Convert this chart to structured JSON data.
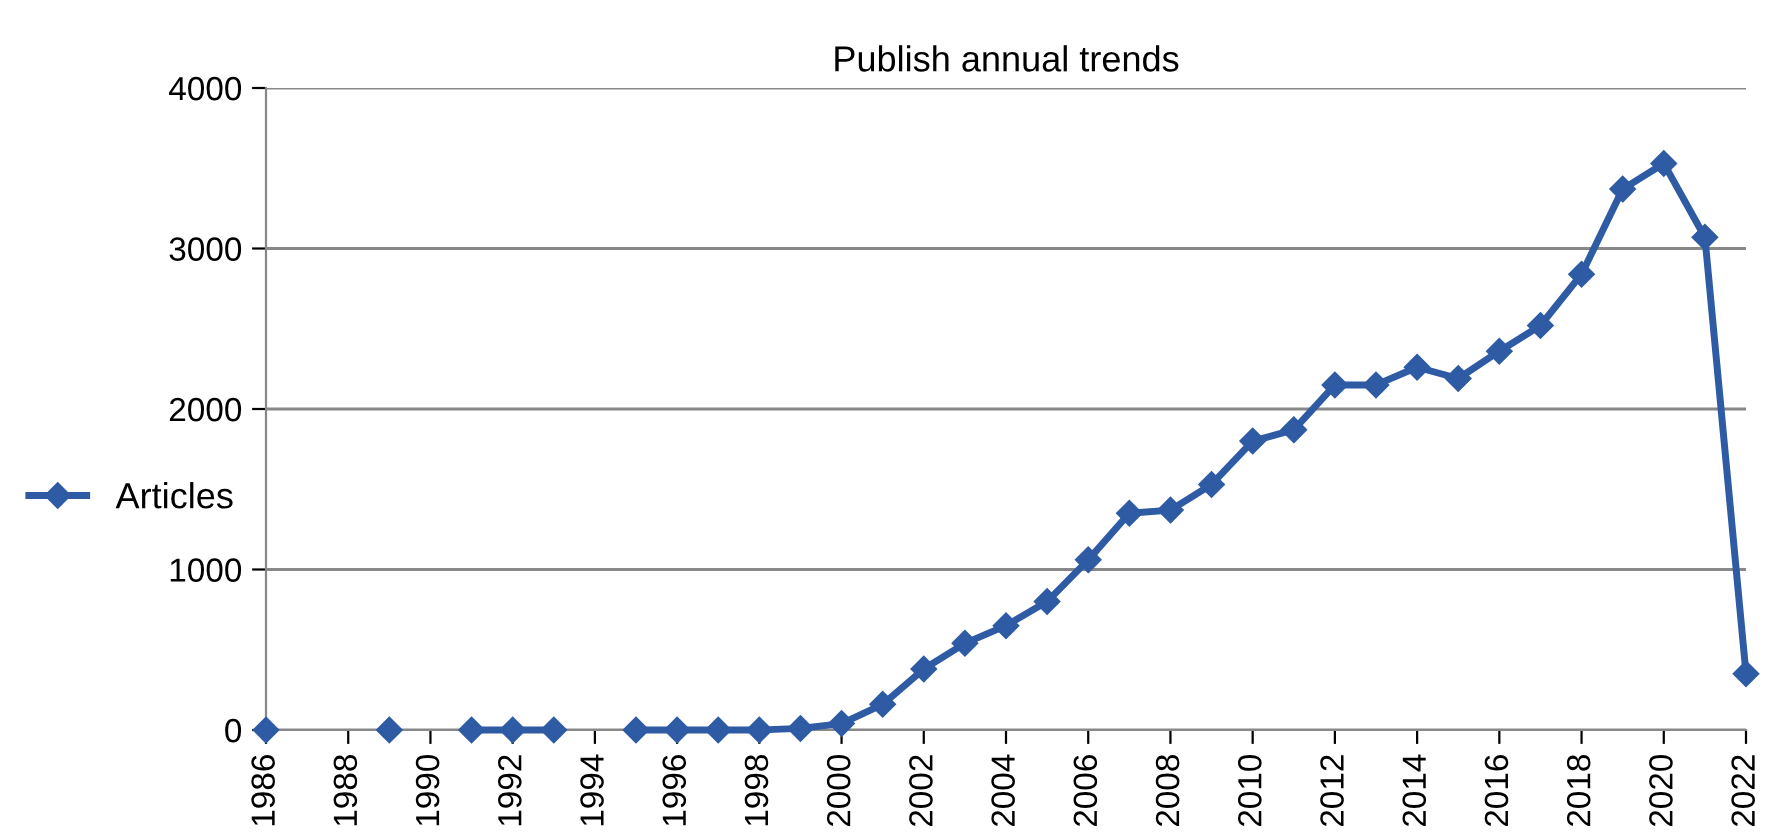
{
  "chart_data": {
    "type": "line",
    "title": "Publish annual trends",
    "x": [
      1986,
      1987,
      1988,
      1989,
      1990,
      1991,
      1992,
      1993,
      1994,
      1995,
      1996,
      1997,
      1998,
      1999,
      2000,
      2001,
      2002,
      2003,
      2004,
      2005,
      2006,
      2007,
      2008,
      2009,
      2010,
      2011,
      2012,
      2013,
      2014,
      2015,
      2016,
      2017,
      2018,
      2019,
      2020,
      2021,
      2022
    ],
    "series": [
      {
        "name": "Articles",
        "color": "#2e5ba4",
        "values": [
          0,
          null,
          null,
          0,
          null,
          0,
          0,
          0,
          null,
          0,
          0,
          0,
          0,
          10,
          40,
          160,
          380,
          540,
          650,
          800,
          1060,
          1350,
          1370,
          1530,
          1800,
          1870,
          2150,
          2150,
          2260,
          2190,
          2360,
          2520,
          2840,
          3370,
          3530,
          3070,
          350
        ]
      }
    ],
    "xlim": [
      1986,
      2022
    ],
    "xticks": [
      1986,
      1988,
      1990,
      1992,
      1994,
      1996,
      1998,
      2000,
      2002,
      2004,
      2006,
      2008,
      2010,
      2012,
      2014,
      2016,
      2018,
      2020,
      2022
    ],
    "ylim": [
      0,
      4000
    ],
    "yticks": [
      0,
      1000,
      2000,
      3000,
      4000
    ],
    "grid": "y",
    "legend": "left",
    "marker": "diamond",
    "line_style": "solid"
  }
}
